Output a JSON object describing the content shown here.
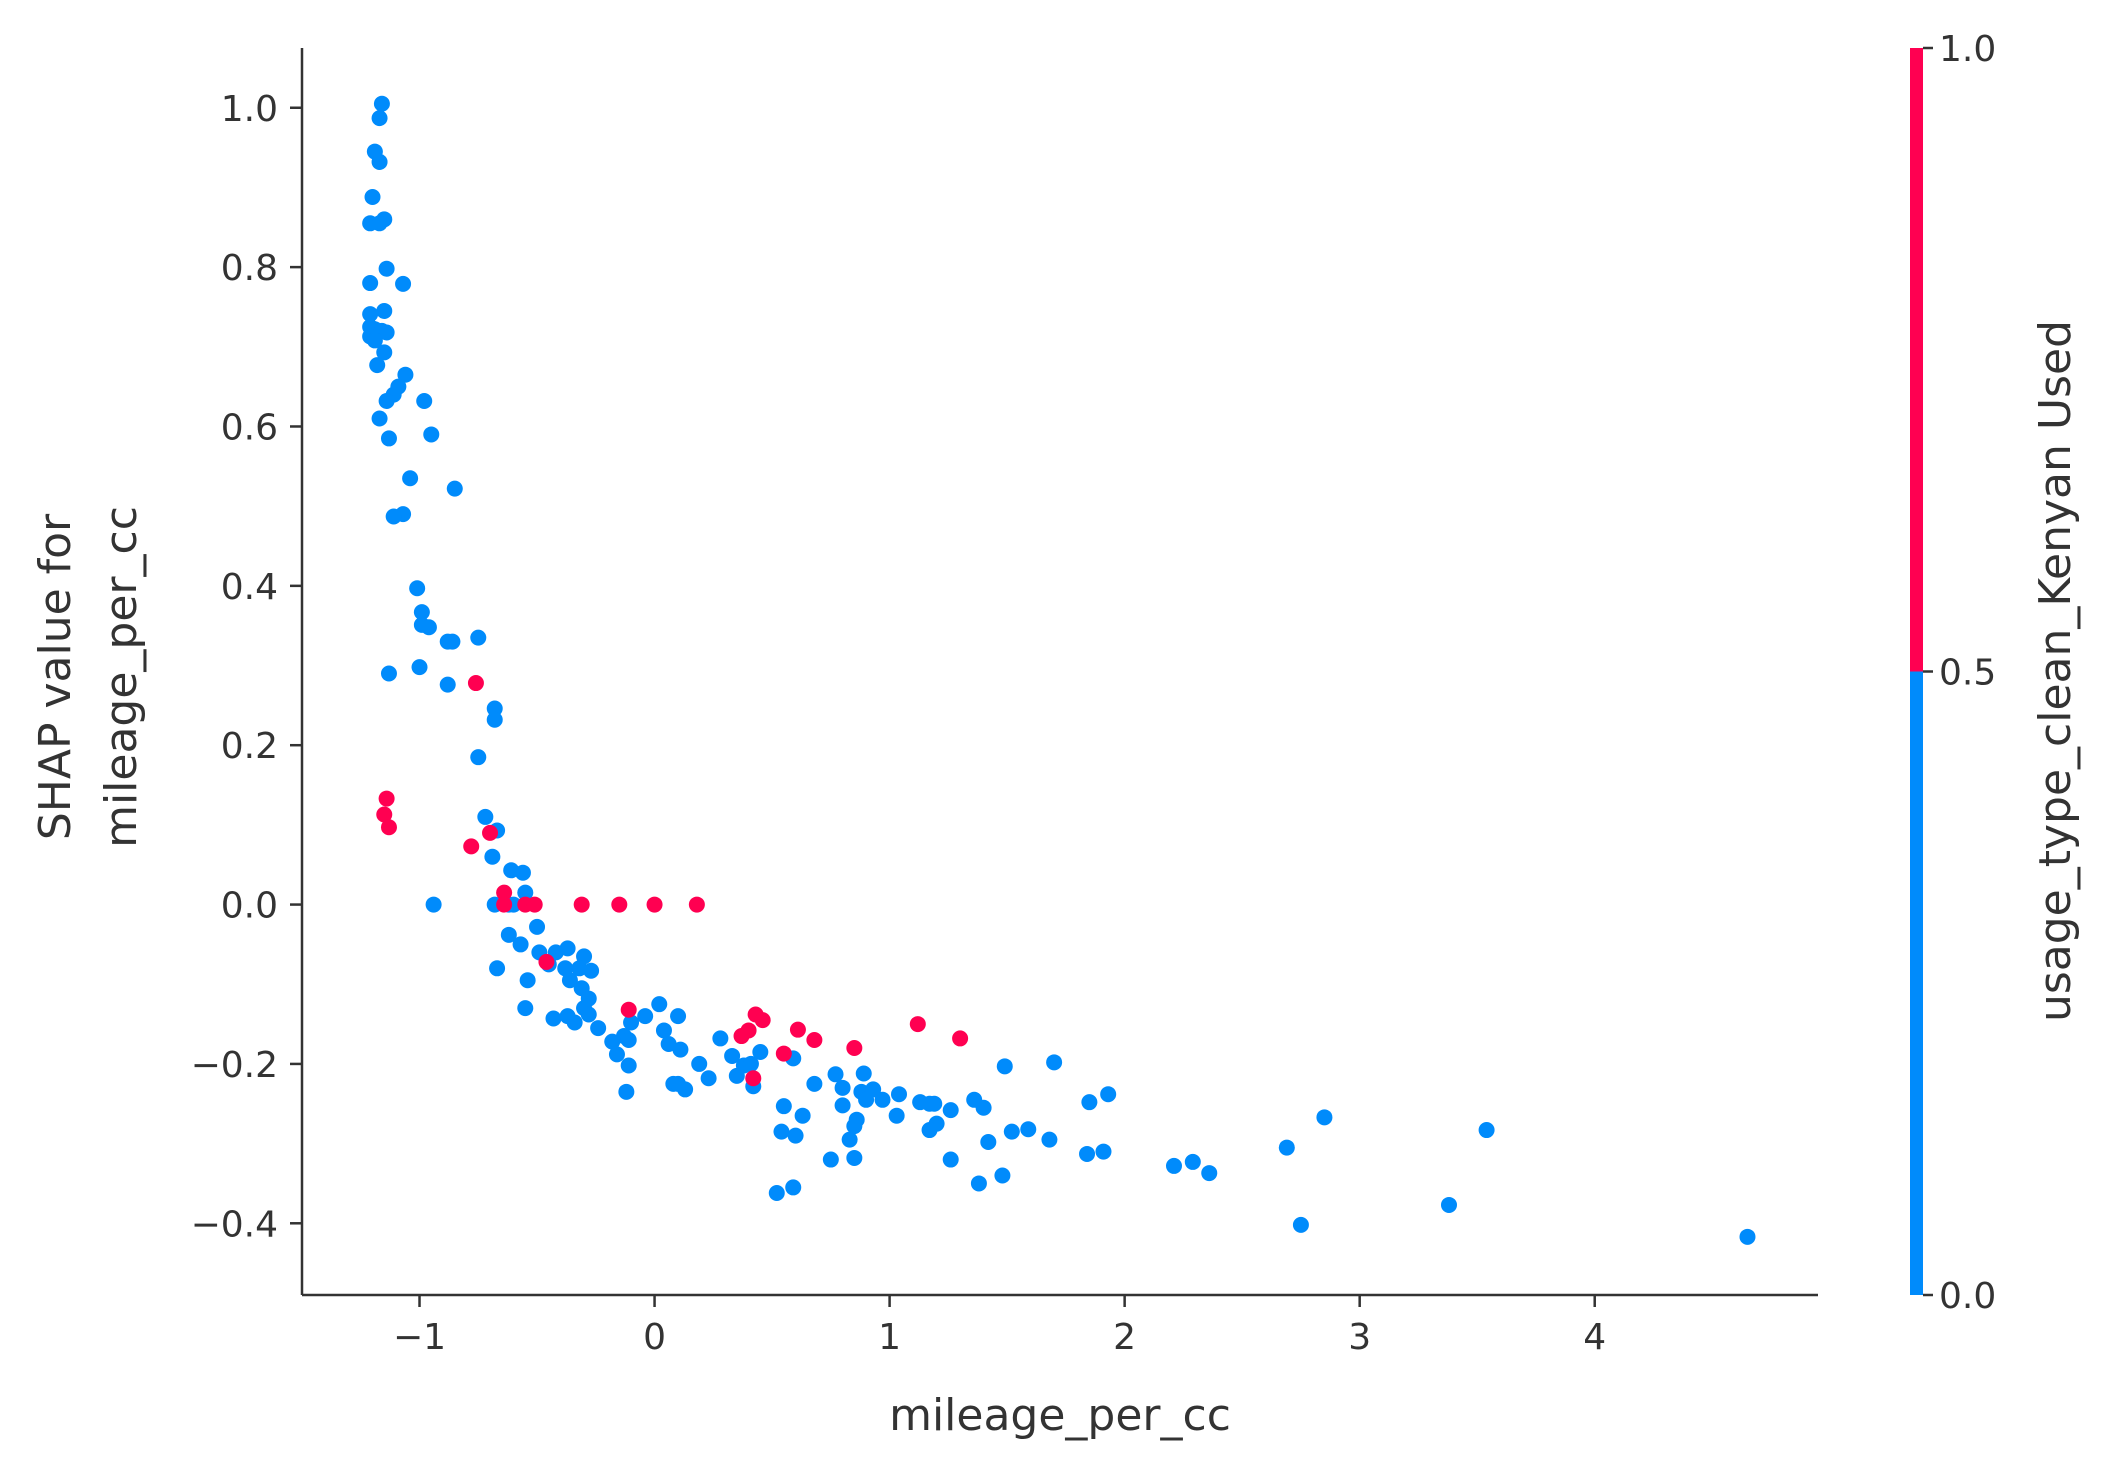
{
  "chart_data": {
    "type": "scatter",
    "title": "",
    "xlabel": "mileage_per_cc",
    "ylabel_lines": [
      "SHAP value for",
      "mileage_per_cc"
    ],
    "xlim": [
      -1.5,
      4.95
    ],
    "ylim": [
      -0.49,
      1.075
    ],
    "xticks": [
      -1,
      0,
      1,
      2,
      3,
      4
    ],
    "xtick_labels": [
      "−1",
      "0",
      "1",
      "2",
      "3",
      "4"
    ],
    "yticks": [
      -0.4,
      -0.2,
      0.0,
      0.2,
      0.4,
      0.6,
      0.8,
      1.0
    ],
    "ytick_labels": [
      "−0.4",
      "−0.2",
      "0.0",
      "0.2",
      "0.4",
      "0.6",
      "0.8",
      "1.0"
    ],
    "grid": false,
    "colorbar": {
      "label": "usage_type_clean_Kenyan Used",
      "range": [
        0,
        1
      ],
      "ticks": [
        0.0,
        0.5,
        1.0
      ],
      "tick_labels": [
        "0.0",
        "0.5",
        "1.0"
      ],
      "low_color": "#008bfb",
      "high_color": "#ff0051"
    },
    "series": [
      {
        "color_value": 0,
        "color": "#008bfb",
        "points": [
          [
            -1.16,
            1.005
          ],
          [
            -1.17,
            0.987
          ],
          [
            -1.19,
            0.945
          ],
          [
            -1.17,
            0.932
          ],
          [
            -1.2,
            0.888
          ],
          [
            -1.15,
            0.86
          ],
          [
            -1.21,
            0.855
          ],
          [
            -1.17,
            0.855
          ],
          [
            -1.14,
            0.798
          ],
          [
            -1.21,
            0.78
          ],
          [
            -1.07,
            0.779
          ],
          [
            -1.15,
            0.745
          ],
          [
            -1.21,
            0.741
          ],
          [
            -1.21,
            0.725
          ],
          [
            -1.19,
            0.722
          ],
          [
            -1.16,
            0.72
          ],
          [
            -1.14,
            0.718
          ],
          [
            -1.21,
            0.713
          ],
          [
            -1.19,
            0.708
          ],
          [
            -1.15,
            0.693
          ],
          [
            -1.18,
            0.677
          ],
          [
            -1.06,
            0.665
          ],
          [
            -1.09,
            0.65
          ],
          [
            -1.11,
            0.64
          ],
          [
            -1.14,
            0.632
          ],
          [
            -0.98,
            0.632
          ],
          [
            -1.17,
            0.61
          ],
          [
            -0.95,
            0.59
          ],
          [
            -1.13,
            0.585
          ],
          [
            -1.04,
            0.535
          ],
          [
            -0.85,
            0.522
          ],
          [
            -1.07,
            0.49
          ],
          [
            -1.11,
            0.487
          ],
          [
            -1.01,
            0.397
          ],
          [
            -0.99,
            0.367
          ],
          [
            -0.99,
            0.351
          ],
          [
            -0.96,
            0.348
          ],
          [
            -0.75,
            0.335
          ],
          [
            -0.88,
            0.33
          ],
          [
            -0.86,
            0.33
          ],
          [
            -1.0,
            0.298
          ],
          [
            -1.13,
            0.29
          ],
          [
            -0.88,
            0.276
          ],
          [
            -0.68,
            0.246
          ],
          [
            -0.68,
            0.232
          ],
          [
            -0.75,
            0.185
          ],
          [
            -0.72,
            0.11
          ],
          [
            -0.67,
            0.093
          ],
          [
            -0.69,
            0.06
          ],
          [
            -0.61,
            0.043
          ],
          [
            -0.56,
            0.04
          ],
          [
            -0.55,
            0.015
          ],
          [
            -0.94,
            0.0
          ],
          [
            -0.68,
            0.0
          ],
          [
            -0.62,
            0.0
          ],
          [
            -0.6,
            0.0
          ],
          [
            -0.5,
            -0.028
          ],
          [
            -0.62,
            -0.038
          ],
          [
            -0.57,
            -0.05
          ],
          [
            -0.49,
            -0.06
          ],
          [
            -0.42,
            -0.06
          ],
          [
            -0.37,
            -0.055
          ],
          [
            -0.3,
            -0.065
          ],
          [
            -0.67,
            -0.08
          ],
          [
            -0.45,
            -0.075
          ],
          [
            -0.38,
            -0.08
          ],
          [
            -0.32,
            -0.08
          ],
          [
            -0.36,
            -0.095
          ],
          [
            -0.27,
            -0.083
          ],
          [
            -0.31,
            -0.105
          ],
          [
            -0.28,
            -0.118
          ],
          [
            -0.3,
            -0.13
          ],
          [
            -0.54,
            -0.095
          ],
          [
            -0.55,
            -0.13
          ],
          [
            -0.43,
            -0.143
          ],
          [
            -0.37,
            -0.14
          ],
          [
            -0.34,
            -0.148
          ],
          [
            -0.28,
            -0.138
          ],
          [
            -0.24,
            -0.155
          ],
          [
            -0.1,
            -0.148
          ],
          [
            0.02,
            -0.125
          ],
          [
            -0.04,
            -0.14
          ],
          [
            0.1,
            -0.14
          ],
          [
            0.04,
            -0.158
          ],
          [
            -0.18,
            -0.172
          ],
          [
            -0.13,
            -0.165
          ],
          [
            -0.11,
            -0.17
          ],
          [
            0.06,
            -0.175
          ],
          [
            0.11,
            -0.182
          ],
          [
            0.28,
            -0.168
          ],
          [
            -0.16,
            -0.188
          ],
          [
            -0.11,
            -0.202
          ],
          [
            -0.12,
            -0.235
          ],
          [
            0.08,
            -0.225
          ],
          [
            0.1,
            -0.225
          ],
          [
            0.13,
            -0.232
          ],
          [
            0.19,
            -0.2
          ],
          [
            0.23,
            -0.218
          ],
          [
            0.33,
            -0.19
          ],
          [
            0.38,
            -0.202
          ],
          [
            0.41,
            -0.2
          ],
          [
            0.45,
            -0.185
          ],
          [
            0.35,
            -0.215
          ],
          [
            0.42,
            -0.228
          ],
          [
            0.59,
            -0.193
          ],
          [
            0.68,
            -0.225
          ],
          [
            0.77,
            -0.213
          ],
          [
            0.8,
            -0.23
          ],
          [
            0.88,
            -0.235
          ],
          [
            0.89,
            -0.212
          ],
          [
            0.9,
            -0.245
          ],
          [
            0.93,
            -0.232
          ],
          [
            0.97,
            -0.245
          ],
          [
            1.04,
            -0.238
          ],
          [
            1.13,
            -0.248
          ],
          [
            1.17,
            -0.25
          ],
          [
            1.19,
            -0.25
          ],
          [
            1.36,
            -0.245
          ],
          [
            1.4,
            -0.255
          ],
          [
            1.26,
            -0.258
          ],
          [
            0.55,
            -0.253
          ],
          [
            0.8,
            -0.252
          ],
          [
            0.63,
            -0.265
          ],
          [
            0.86,
            -0.27
          ],
          [
            0.85,
            -0.278
          ],
          [
            1.03,
            -0.265
          ],
          [
            1.2,
            -0.275
          ],
          [
            1.17,
            -0.283
          ],
          [
            1.49,
            -0.203
          ],
          [
            1.7,
            -0.198
          ],
          [
            1.85,
            -0.248
          ],
          [
            1.93,
            -0.238
          ],
          [
            0.54,
            -0.285
          ],
          [
            0.6,
            -0.29
          ],
          [
            0.83,
            -0.295
          ],
          [
            1.42,
            -0.298
          ],
          [
            1.52,
            -0.285
          ],
          [
            1.59,
            -0.282
          ],
          [
            1.68,
            -0.295
          ],
          [
            0.75,
            -0.32
          ],
          [
            0.85,
            -0.318
          ],
          [
            1.26,
            -0.32
          ],
          [
            1.84,
            -0.313
          ],
          [
            1.91,
            -0.31
          ],
          [
            2.21,
            -0.328
          ],
          [
            2.29,
            -0.323
          ],
          [
            2.36,
            -0.337
          ],
          [
            1.48,
            -0.34
          ],
          [
            1.38,
            -0.35
          ],
          [
            0.59,
            -0.355
          ],
          [
            0.52,
            -0.362
          ],
          [
            2.69,
            -0.305
          ],
          [
            2.85,
            -0.267
          ],
          [
            3.54,
            -0.283
          ],
          [
            2.75,
            -0.402
          ],
          [
            3.38,
            -0.377
          ],
          [
            4.65,
            -0.417
          ]
        ]
      },
      {
        "color_value": 1,
        "color": "#ff0051",
        "points": [
          [
            -0.76,
            0.278
          ],
          [
            -1.14,
            0.133
          ],
          [
            -1.15,
            0.113
          ],
          [
            -1.13,
            0.097
          ],
          [
            -0.78,
            0.073
          ],
          [
            -0.7,
            0.09
          ],
          [
            -0.64,
            0.015
          ],
          [
            -0.64,
            0.0
          ],
          [
            -0.55,
            0.0
          ],
          [
            -0.51,
            0.0
          ],
          [
            -0.31,
            0.0
          ],
          [
            -0.15,
            0.0
          ],
          [
            0.0,
            0.0
          ],
          [
            0.18,
            0.0
          ],
          [
            -0.46,
            -0.072
          ],
          [
            -0.11,
            -0.132
          ],
          [
            0.37,
            -0.165
          ],
          [
            0.4,
            -0.158
          ],
          [
            0.43,
            -0.138
          ],
          [
            0.46,
            -0.145
          ],
          [
            0.61,
            -0.157
          ],
          [
            0.68,
            -0.17
          ],
          [
            0.85,
            -0.18
          ],
          [
            1.12,
            -0.15
          ],
          [
            1.3,
            -0.168
          ],
          [
            0.55,
            -0.187
          ],
          [
            0.42,
            -0.218
          ]
        ]
      }
    ]
  }
}
